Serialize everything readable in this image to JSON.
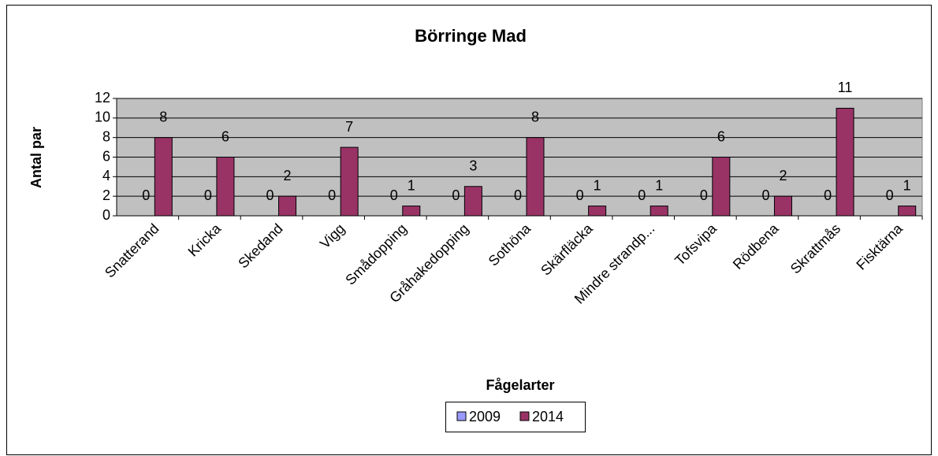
{
  "chart_data": {
    "type": "bar",
    "title": "Börringe Mad",
    "x_label": "Fågelarter",
    "y_label": "Antal par",
    "categories": [
      "Snatterand",
      "Kricka",
      "Skedand",
      "Vigg",
      "Smådopping",
      "Gråhakedopping",
      "Sothöna",
      "Skärfläcka",
      "Mindre strandp...",
      "Tofsvipa",
      "Rödbena",
      "Skrattmås",
      "Fisktärna"
    ],
    "series": [
      {
        "name": "2009",
        "color": "#9999ff",
        "values": [
          0,
          0,
          0,
          0,
          0,
          0,
          0,
          0,
          0,
          0,
          0,
          0,
          0
        ]
      },
      {
        "name": "2014",
        "color": "#993366",
        "values": [
          8,
          6,
          2,
          7,
          1,
          3,
          8,
          1,
          1,
          6,
          2,
          11,
          1
        ]
      }
    ],
    "ylim": [
      0,
      12
    ],
    "yticks": [
      0,
      2,
      4,
      6,
      8,
      10,
      12
    ],
    "grid": true,
    "legend": "bottom"
  }
}
